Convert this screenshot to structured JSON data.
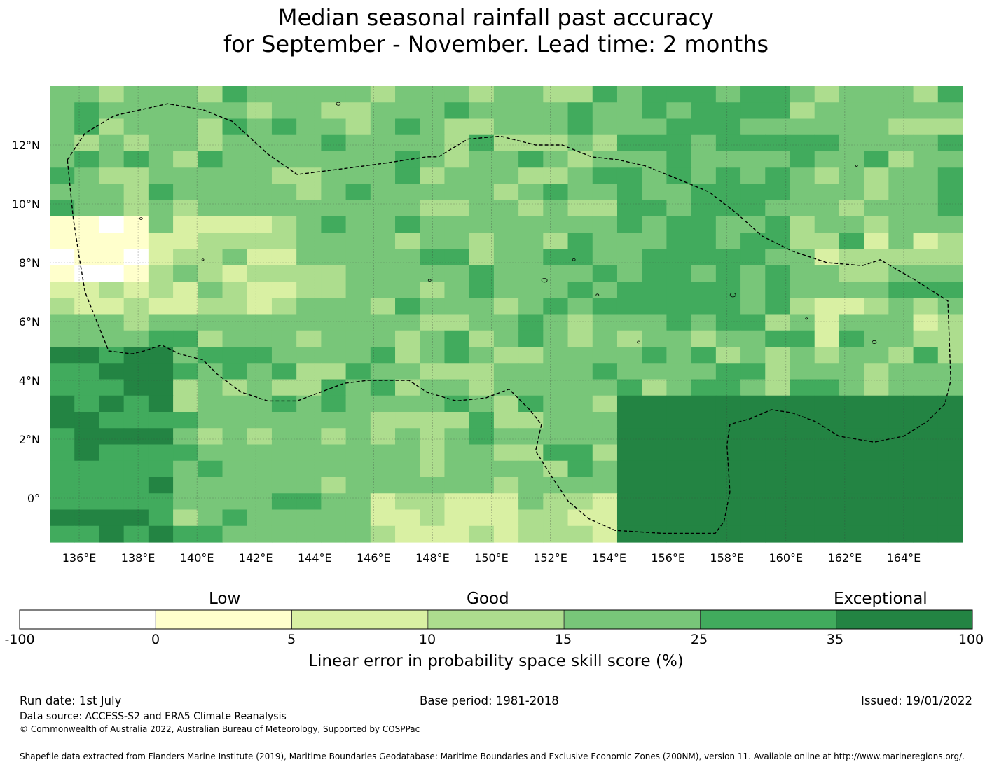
{
  "title": {
    "line1": "Median seasonal rainfall past accuracy",
    "line2": "for September - November. Lead time: 2 months"
  },
  "map": {
    "extent": {
      "lon_min": 135,
      "lon_max": 166,
      "lat_min": -1.5,
      "lat_max": 14
    },
    "gridlines": true,
    "lon_ticks": [
      {
        "value": 136,
        "label": "136°E"
      },
      {
        "value": 138,
        "label": "138°E"
      },
      {
        "value": 140,
        "label": "140°E"
      },
      {
        "value": 142,
        "label": "142°E"
      },
      {
        "value": 144,
        "label": "144°E"
      },
      {
        "value": 146,
        "label": "146°E"
      },
      {
        "value": 148,
        "label": "148°E"
      },
      {
        "value": 150,
        "label": "150°E"
      },
      {
        "value": 152,
        "label": "152°E"
      },
      {
        "value": 154,
        "label": "154°E"
      },
      {
        "value": 156,
        "label": "156°E"
      },
      {
        "value": 158,
        "label": "158°E"
      },
      {
        "value": 160,
        "label": "160°E"
      },
      {
        "value": 162,
        "label": "162°E"
      },
      {
        "value": 164,
        "label": "164°E"
      }
    ],
    "lat_ticks": [
      {
        "value": 12,
        "label": "12°N"
      },
      {
        "value": 10,
        "label": "10°N"
      },
      {
        "value": 8,
        "label": "8°N"
      },
      {
        "value": 6,
        "label": "6°N"
      },
      {
        "value": 4,
        "label": "4°N"
      },
      {
        "value": 2,
        "label": "2°N"
      },
      {
        "value": 0,
        "label": "0°"
      }
    ],
    "grid_rows_approx": 28,
    "grid_cols_approx": 37,
    "skill_pattern": "mostly 15-35%, highest (35-100%) in the south-east and south-west, lowest (-100-10%) in the west near 8-10°N",
    "boundary": "Federated States of Micronesia EEZ (dashed line)"
  },
  "colorbar": {
    "categories": [
      {
        "label": "Low"
      },
      {
        "label": "Good"
      },
      {
        "label": "Exceptional"
      }
    ],
    "bins": [
      {
        "from": "-100",
        "to": "0",
        "color": "#ffffff"
      },
      {
        "from": "0",
        "to": "5",
        "color": "#ffffcc"
      },
      {
        "from": "5",
        "to": "10",
        "color": "#d9f0a3"
      },
      {
        "from": "10",
        "to": "15",
        "color": "#addd8e"
      },
      {
        "from": "15",
        "to": "25",
        "color": "#78c679"
      },
      {
        "from": "25",
        "to": "35",
        "color": "#41ab5d"
      },
      {
        "from": "35",
        "to": "100",
        "color": "#238443"
      }
    ],
    "tick_labels": [
      "-100",
      "0",
      "5",
      "10",
      "15",
      "25",
      "35",
      "100"
    ],
    "title": "Linear error in probability space skill score (%)"
  },
  "footer": {
    "run_date": "Run date: 1st July",
    "base_period": "Base period: 1981-2018",
    "issued": "Issued: 19/01/2022",
    "data_source": "Data source: ACCESS-S2 and ERA5 Climate Reanalysis",
    "copyright": "© Commonwealth of Australia 2022, Australian Bureau of Meteorology, Supported by COSPPac",
    "shapefile_note": "Shapefile data extracted from Flanders Marine Institute (2019), Maritime Boundaries Geodatabase: Maritime Boundaries and Exclusive Economic Zones (200NM), version 11. Available online at http://www.marineregions.org/."
  }
}
